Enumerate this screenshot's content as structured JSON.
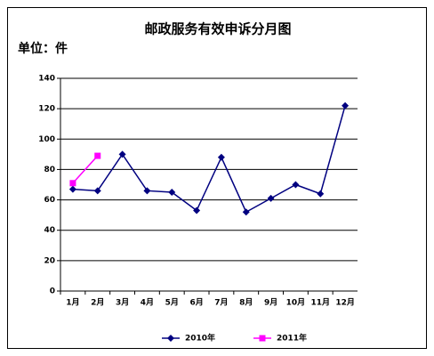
{
  "chart_data": {
    "type": "line",
    "title": "邮政服务有效申诉分月图",
    "subtitle": "单位：件",
    "categories": [
      "1月",
      "2月",
      "3月",
      "4月",
      "5月",
      "6月",
      "7月",
      "8月",
      "9月",
      "10月",
      "11月",
      "12月"
    ],
    "series": [
      {
        "name": "2010年",
        "color": "#000080",
        "marker": "diamond",
        "values": [
          67,
          66,
          90,
          66,
          65,
          53,
          88,
          52,
          61,
          70,
          64,
          122
        ]
      },
      {
        "name": "2011年",
        "color": "#ff00ff",
        "marker": "square",
        "values": [
          71,
          89,
          null,
          null,
          null,
          null,
          null,
          null,
          null,
          null,
          null,
          null
        ]
      }
    ],
    "ylim": [
      0,
      140
    ],
    "yticks": [
      0,
      20,
      40,
      60,
      80,
      100,
      120,
      140
    ],
    "grid": true,
    "legend": "bottom"
  }
}
